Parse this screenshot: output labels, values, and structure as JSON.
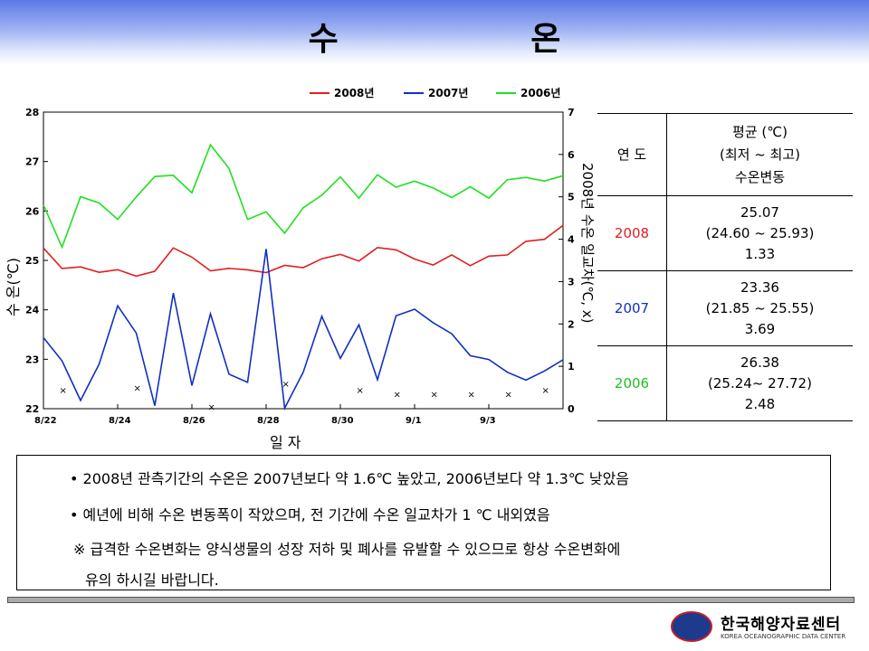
{
  "title": "수    온",
  "chart_data": {
    "type": "line",
    "xlabel": "일    자",
    "ylabel": "수  온(℃)",
    "y2label": "2008년 수온 일교차(℃, x)",
    "ylim": [
      22,
      28
    ],
    "y2lim": [
      0,
      7
    ],
    "yticks": [
      "22",
      "23",
      "24",
      "25",
      "26",
      "27",
      "28"
    ],
    "y2ticks": [
      "0",
      "1",
      "2",
      "3",
      "4",
      "5",
      "6",
      "7"
    ],
    "xticks": [
      "8/22",
      "8/24",
      "8/26",
      "8/28",
      "8/30",
      "9/1",
      "9/3"
    ],
    "x": [
      0,
      0.5,
      1,
      1.5,
      2,
      2.5,
      3,
      3.5,
      4,
      4.5,
      5,
      5.5,
      6,
      6.5,
      7,
      7.5,
      8,
      8.5,
      9,
      9.5,
      10,
      10.5,
      11,
      11.5,
      12,
      12.5,
      13,
      13.5,
      14
    ],
    "grid": false,
    "legend_position": "top",
    "series": [
      {
        "name": "2008년",
        "color": "#e02020",
        "values": [
          25.25,
          24.82,
          24.9,
          24.72,
          24.85,
          24.65,
          24.8,
          25.25,
          25.05,
          24.82,
          24.8,
          24.85,
          24.72,
          24.92,
          24.85,
          25.02,
          25.15,
          24.95,
          25.3,
          25.18,
          25.05,
          24.9,
          25.1,
          24.92,
          25.05,
          25.15,
          25.35,
          25.45,
          25.7
        ]
      },
      {
        "name": "2007년",
        "color": "#1030c0",
        "values": [
          23.4,
          23.0,
          22.15,
          22.9,
          24.1,
          23.5,
          22.1,
          24.3,
          22.5,
          23.9,
          22.7,
          22.55,
          25.2,
          22.05,
          22.7,
          23.9,
          23.0,
          23.7,
          22.6,
          23.85,
          24.05,
          23.7,
          23.55,
          23.05,
          23.0,
          22.75,
          22.55,
          22.8,
          22.95
        ]
      },
      {
        "name": "2006년",
        "color": "#20e020",
        "values": [
          26.1,
          25.3,
          26.25,
          26.2,
          25.8,
          26.3,
          26.7,
          26.7,
          26.4,
          27.3,
          26.9,
          25.8,
          26.0,
          25.55,
          26.05,
          26.35,
          26.65,
          26.3,
          26.7,
          26.5,
          26.6,
          26.45,
          26.3,
          26.45,
          26.3,
          26.6,
          26.7,
          26.6,
          26.7
        ]
      }
    ],
    "diurnal_range": {
      "name": "2008년 수온 일교차",
      "marker": "x",
      "x": [
        0.5,
        2.5,
        4.5,
        6.5,
        8.5,
        10.5,
        12.5
      ],
      "values": [
        0.45,
        0.5,
        0.05,
        0.6,
        0.45,
        0.35,
        0.35
      ],
      "x_extra": [
        9.5,
        11.5,
        13.5
      ],
      "values_extra": [
        0.35,
        0.35,
        0.45
      ]
    }
  },
  "table": {
    "header_year": "연 도",
    "header_stats": [
      "평균 (℃)",
      "(최저 ~ 최고)",
      "수온변동"
    ],
    "rows": [
      {
        "year": "2008",
        "color": "#e02020",
        "lines": [
          "25.07",
          "(24.60 ~ 25.93)",
          "1.33"
        ]
      },
      {
        "year": "2007",
        "color": "#1030c0",
        "lines": [
          "23.36",
          "(21.85 ~ 25.55)",
          "3.69"
        ]
      },
      {
        "year": "2006",
        "color": "#20c020",
        "lines": [
          "26.38",
          "(25.24~ 27.72)",
          "2.48"
        ]
      }
    ]
  },
  "notes": [
    "• 2008년 관측기간의 수온은 2007년보다 약 1.6℃ 높았고, 2006년보다 약 1.3℃ 낮았음",
    "• 예년에 비해 수온 변동폭이 작았으며, 전 기간에 수온 일교차가 1 ℃ 내외였음",
    "※ 급격한 수온변화는 양식생물의 성장 저하 및 폐사를 유발할 수 있으므로 항상 수온변화에",
    "유의 하시길 바랍니다."
  ],
  "logo": {
    "name": "한국해양자료센터",
    "subtitle": "KOREA OCEANOGRAPHIC DATA CENTER",
    "mark": "KODC"
  }
}
